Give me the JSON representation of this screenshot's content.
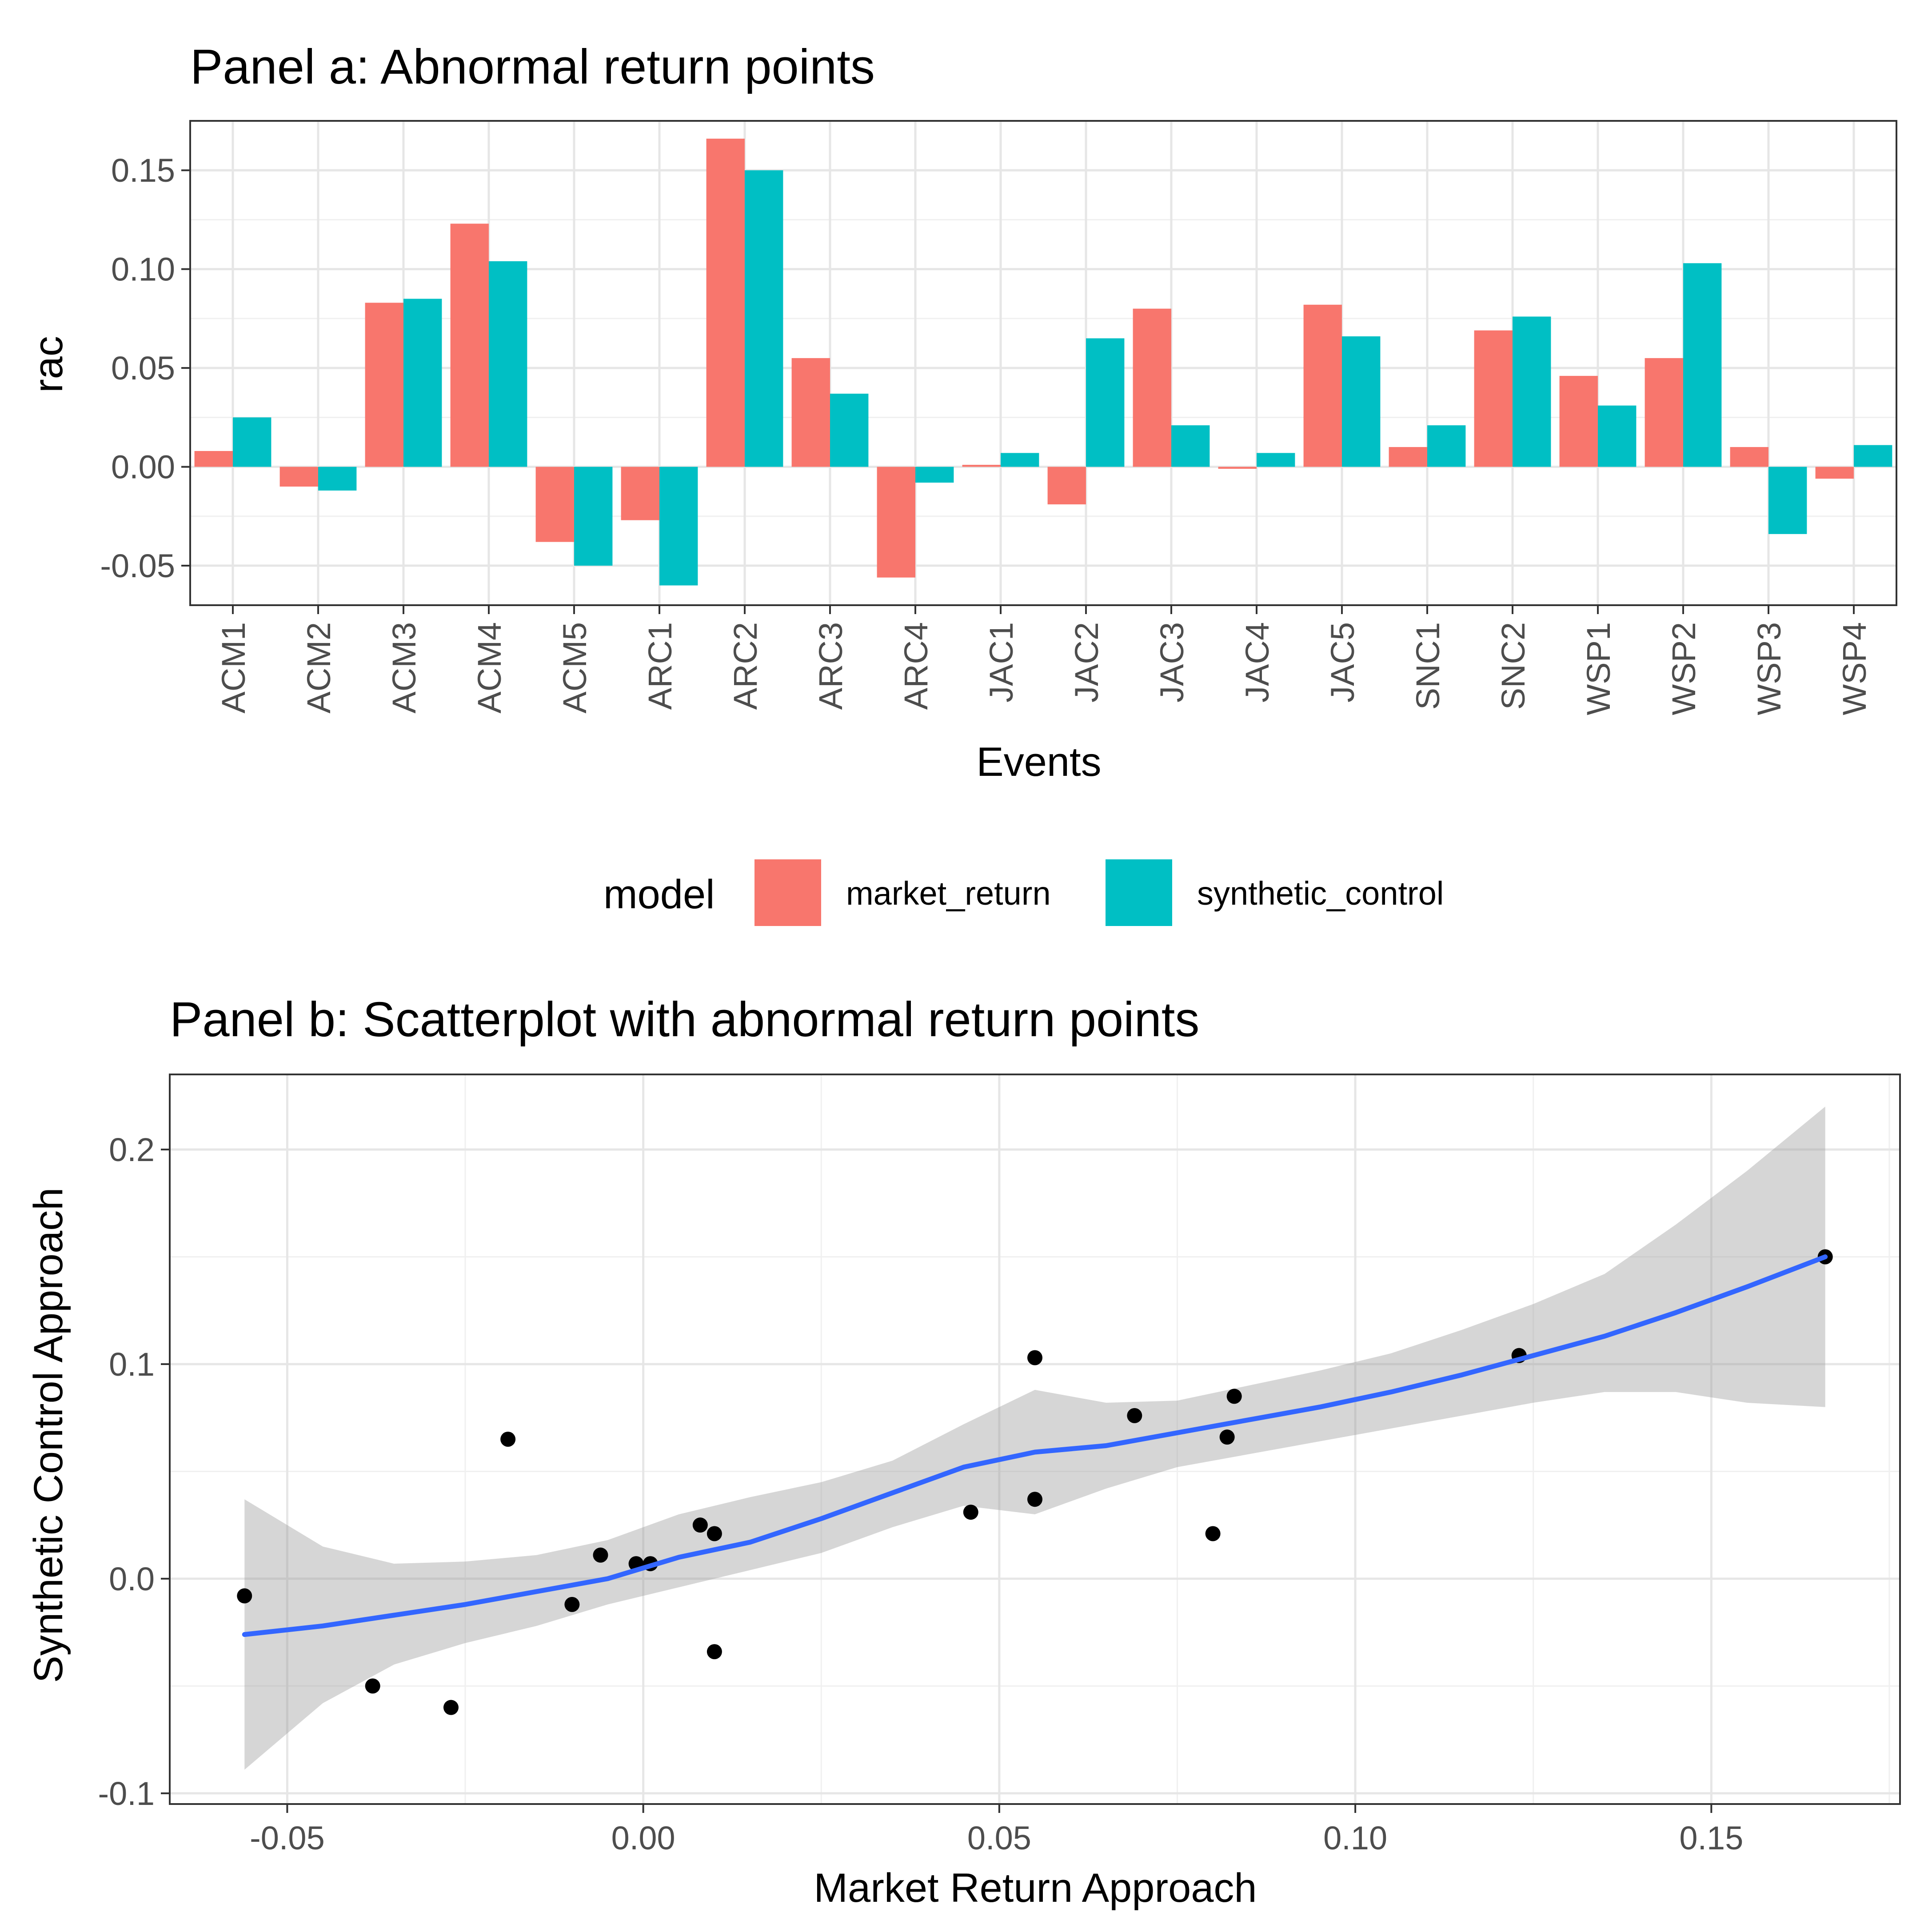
{
  "chart_data": [
    {
      "type": "bar",
      "title": "Panel a: Abnormal return points",
      "xlabel": "Events",
      "ylabel": "rac",
      "categories": [
        "ACM1",
        "ACM2",
        "ACM3",
        "ACM4",
        "ACM5",
        "ARC1",
        "ARC2",
        "ARC3",
        "ARC4",
        "JAC1",
        "JAC2",
        "JAC3",
        "JAC4",
        "JAC5",
        "SNC1",
        "SNC2",
        "WSP1",
        "WSP2",
        "WSP3",
        "WSP4"
      ],
      "series": [
        {
          "name": "market_return",
          "color": "#F8766D",
          "values": [
            0.008,
            -0.01,
            0.083,
            0.123,
            -0.038,
            -0.027,
            0.166,
            0.055,
            -0.056,
            0.001,
            -0.019,
            0.08,
            -0.001,
            0.082,
            0.01,
            0.069,
            0.046,
            0.055,
            0.01,
            -0.006
          ]
        },
        {
          "name": "synthetic_control",
          "color": "#00BFC4",
          "values": [
            0.025,
            -0.012,
            0.085,
            0.104,
            -0.05,
            -0.06,
            0.15,
            0.037,
            -0.008,
            0.007,
            0.065,
            0.021,
            0.007,
            0.066,
            0.021,
            0.076,
            0.031,
            0.103,
            -0.034,
            0.011
          ]
        }
      ],
      "ylim": [
        -0.07,
        0.175
      ],
      "yticks": [
        -0.05,
        0.0,
        0.05,
        0.1,
        0.15
      ],
      "ytick_labels": [
        "-0.05",
        "0.00",
        "0.05",
        "0.10",
        "0.15"
      ],
      "grid": true,
      "legend": {
        "title": "model",
        "position": "bottom",
        "entries": [
          "market_return",
          "synthetic_control"
        ]
      }
    },
    {
      "type": "scatter",
      "title": "Panel b: Scatterplot with abnormal return points",
      "xlabel": "Market Return Approach",
      "ylabel": "Synthetic Control Approach",
      "points": [
        {
          "x": 0.008,
          "y": 0.025
        },
        {
          "x": -0.01,
          "y": -0.012
        },
        {
          "x": 0.083,
          "y": 0.085
        },
        {
          "x": 0.123,
          "y": 0.104
        },
        {
          "x": -0.038,
          "y": -0.05
        },
        {
          "x": -0.027,
          "y": -0.06
        },
        {
          "x": 0.166,
          "y": 0.15
        },
        {
          "x": 0.055,
          "y": 0.037
        },
        {
          "x": -0.056,
          "y": -0.008
        },
        {
          "x": 0.001,
          "y": 0.007
        },
        {
          "x": -0.019,
          "y": 0.065
        },
        {
          "x": 0.08,
          "y": 0.021
        },
        {
          "x": -0.001,
          "y": 0.007
        },
        {
          "x": 0.082,
          "y": 0.066
        },
        {
          "x": 0.01,
          "y": 0.021
        },
        {
          "x": 0.069,
          "y": 0.076
        },
        {
          "x": 0.046,
          "y": 0.031
        },
        {
          "x": 0.055,
          "y": 0.103
        },
        {
          "x": 0.01,
          "y": -0.034
        },
        {
          "x": -0.006,
          "y": 0.011
        }
      ],
      "smooth": {
        "method": "loess",
        "color": "#3366FF",
        "x": [
          -0.056,
          -0.045,
          -0.035,
          -0.025,
          -0.015,
          -0.005,
          0.005,
          0.015,
          0.025,
          0.035,
          0.045,
          0.055,
          0.065,
          0.075,
          0.085,
          0.095,
          0.105,
          0.115,
          0.125,
          0.135,
          0.145,
          0.155,
          0.166
        ],
        "y": [
          -0.026,
          -0.022,
          -0.017,
          -0.012,
          -0.006,
          0.0,
          0.01,
          0.017,
          0.028,
          0.04,
          0.052,
          0.059,
          0.062,
          0.068,
          0.074,
          0.08,
          0.087,
          0.095,
          0.104,
          0.113,
          0.124,
          0.136,
          0.15
        ],
        "lower": [
          -0.089,
          -0.058,
          -0.04,
          -0.03,
          -0.022,
          -0.012,
          -0.004,
          0.004,
          0.012,
          0.024,
          0.034,
          0.03,
          0.042,
          0.052,
          0.058,
          0.064,
          0.07,
          0.076,
          0.082,
          0.087,
          0.087,
          0.082,
          0.08
        ],
        "upper": [
          0.037,
          0.015,
          0.007,
          0.008,
          0.011,
          0.018,
          0.03,
          0.038,
          0.045,
          0.055,
          0.072,
          0.088,
          0.082,
          0.083,
          0.09,
          0.097,
          0.105,
          0.116,
          0.128,
          0.142,
          0.165,
          0.19,
          0.22
        ]
      },
      "xlim": [
        -0.0665,
        0.1765
      ],
      "ylim": [
        -0.105,
        0.235
      ],
      "xticks": [
        -0.05,
        0.0,
        0.05,
        0.1,
        0.15
      ],
      "xtick_labels": [
        "-0.05",
        "0.00",
        "0.05",
        "0.10",
        "0.15"
      ],
      "yticks": [
        -0.1,
        0.0,
        0.1,
        0.2
      ],
      "ytick_labels": [
        "-0.1",
        "0.0",
        "0.1",
        "0.2"
      ],
      "grid": true
    }
  ]
}
